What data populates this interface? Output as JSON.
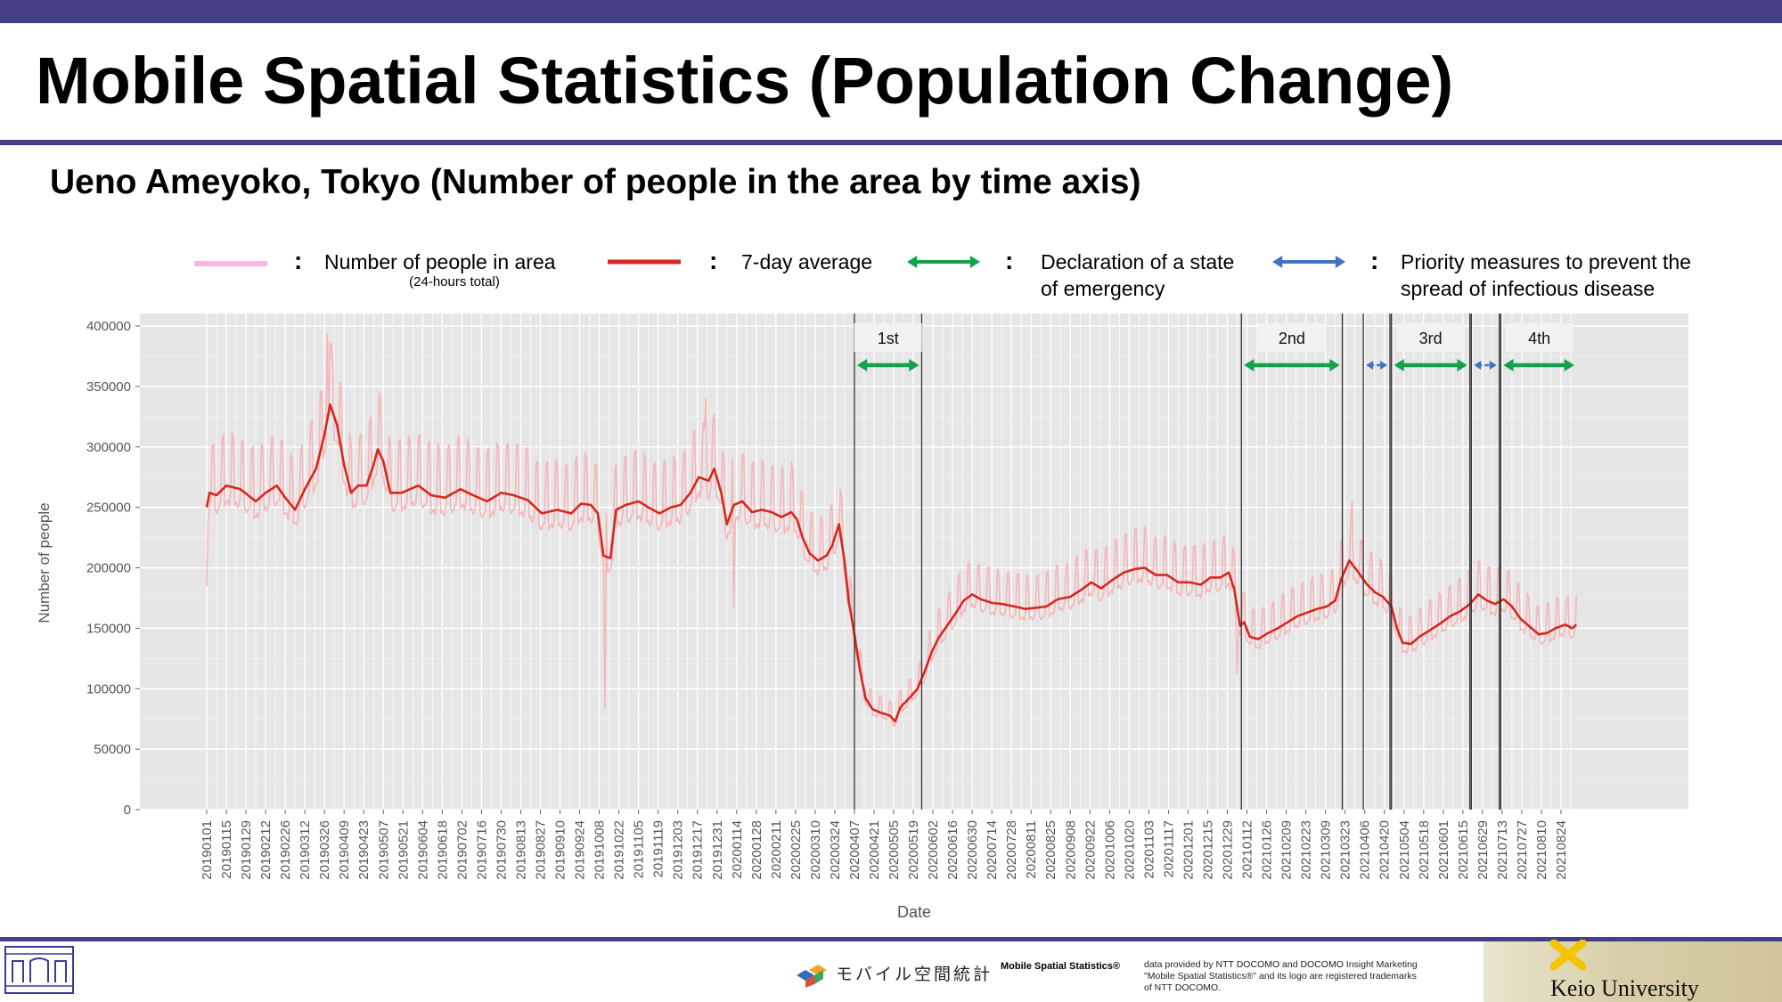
{
  "header": {
    "title": "Mobile Spatial Statistics (Population Change)",
    "subtitle": "Ueno Ameyoko, Tokyo (Number of people in the area by time axis)"
  },
  "legend": {
    "colon": ":",
    "items": [
      {
        "label": "Number of people in area",
        "sublabel": "(24-hours total)",
        "color": "#f7b6e6"
      },
      {
        "label": "7-day average",
        "color": "#d6281e"
      },
      {
        "label_lines": [
          "Declaration of a state",
          "of emergency"
        ],
        "color": "#12a24a"
      },
      {
        "label_lines": [
          "Priority measures to prevent the",
          "spread of infectious disease"
        ],
        "color": "#4472c4"
      }
    ]
  },
  "chart_data": {
    "type": "line",
    "xlabel": "Date",
    "ylabel": "Number of people",
    "ylim": [
      0,
      400000
    ],
    "yticks": [
      0,
      50000,
      100000,
      150000,
      200000,
      250000,
      300000,
      350000,
      400000
    ],
    "ytick_labels": [
      "0",
      "50000",
      "100000",
      "150000",
      "200000",
      "250000",
      "300000",
      "350000",
      "400000"
    ],
    "x_start": "2019-01-01",
    "x_end": "2021-09-05",
    "xtick_labels": [
      "20190101",
      "20190115",
      "20190129",
      "20190212",
      "20190226",
      "20190312",
      "20190326",
      "20190409",
      "20190423",
      "20190507",
      "20190521",
      "20190604",
      "20190618",
      "20190702",
      "20190716",
      "20190730",
      "20190813",
      "20190827",
      "20190910",
      "20190924",
      "20191008",
      "20191022",
      "20191105",
      "20191119",
      "20191203",
      "20191217",
      "20191231",
      "20200114",
      "20200128",
      "20200211",
      "20200225",
      "20200310",
      "20200324",
      "20200407",
      "20200421",
      "20200505",
      "20200519",
      "20200602",
      "20200616",
      "20200630",
      "20200714",
      "20200728",
      "20200811",
      "20200825",
      "20200908",
      "20200922",
      "20201006",
      "20201020",
      "20201103",
      "20201117",
      "20201201",
      "20201215",
      "20201229",
      "20210112",
      "20210126",
      "20210209",
      "20210223",
      "20210309",
      "20210323",
      "20210406",
      "20210420",
      "20210504",
      "20210518",
      "20210601",
      "20210615",
      "20210629",
      "20210713",
      "20210727",
      "20210810",
      "20210824"
    ],
    "grid": true,
    "background": "#e6e6e6",
    "series": [
      {
        "name": "7-day average",
        "color": "#d6281e",
        "points": [
          [
            "2019-01-01",
            250000
          ],
          [
            "2019-01-03",
            262000
          ],
          [
            "2019-01-08",
            260000
          ],
          [
            "2019-01-15",
            268000
          ],
          [
            "2019-01-25",
            265000
          ],
          [
            "2019-02-05",
            255000
          ],
          [
            "2019-02-12",
            262000
          ],
          [
            "2019-02-20",
            268000
          ],
          [
            "2019-02-26",
            258000
          ],
          [
            "2019-03-05",
            248000
          ],
          [
            "2019-03-12",
            265000
          ],
          [
            "2019-03-20",
            282000
          ],
          [
            "2019-03-26",
            310000
          ],
          [
            "2019-03-30",
            335000
          ],
          [
            "2019-04-04",
            318000
          ],
          [
            "2019-04-09",
            285000
          ],
          [
            "2019-04-14",
            262000
          ],
          [
            "2019-04-19",
            268000
          ],
          [
            "2019-04-25",
            268000
          ],
          [
            "2019-04-30",
            285000
          ],
          [
            "2019-05-03",
            298000
          ],
          [
            "2019-05-07",
            288000
          ],
          [
            "2019-05-12",
            262000
          ],
          [
            "2019-05-20",
            262000
          ],
          [
            "2019-06-01",
            268000
          ],
          [
            "2019-06-10",
            260000
          ],
          [
            "2019-06-20",
            258000
          ],
          [
            "2019-07-01",
            265000
          ],
          [
            "2019-07-10",
            260000
          ],
          [
            "2019-07-20",
            255000
          ],
          [
            "2019-07-30",
            262000
          ],
          [
            "2019-08-08",
            260000
          ],
          [
            "2019-08-18",
            256000
          ],
          [
            "2019-08-28",
            245000
          ],
          [
            "2019-09-08",
            248000
          ],
          [
            "2019-09-18",
            245000
          ],
          [
            "2019-09-25",
            253000
          ],
          [
            "2019-10-02",
            252000
          ],
          [
            "2019-10-07",
            245000
          ],
          [
            "2019-10-11",
            210000
          ],
          [
            "2019-10-16",
            208000
          ],
          [
            "2019-10-20",
            248000
          ],
          [
            "2019-10-27",
            252000
          ],
          [
            "2019-11-05",
            255000
          ],
          [
            "2019-11-12",
            250000
          ],
          [
            "2019-11-20",
            245000
          ],
          [
            "2019-11-28",
            250000
          ],
          [
            "2019-12-05",
            252000
          ],
          [
            "2019-12-12",
            262000
          ],
          [
            "2019-12-18",
            275000
          ],
          [
            "2019-12-25",
            272000
          ],
          [
            "2019-12-29",
            282000
          ],
          [
            "2020-01-03",
            262000
          ],
          [
            "2020-01-07",
            236000
          ],
          [
            "2020-01-12",
            252000
          ],
          [
            "2020-01-18",
            255000
          ],
          [
            "2020-01-25",
            246000
          ],
          [
            "2020-02-01",
            248000
          ],
          [
            "2020-02-08",
            246000
          ],
          [
            "2020-02-15",
            242000
          ],
          [
            "2020-02-22",
            246000
          ],
          [
            "2020-02-26",
            240000
          ],
          [
            "2020-03-01",
            225000
          ],
          [
            "2020-03-06",
            212000
          ],
          [
            "2020-03-12",
            206000
          ],
          [
            "2020-03-18",
            210000
          ],
          [
            "2020-03-22",
            218000
          ],
          [
            "2020-03-27",
            236000
          ],
          [
            "2020-03-31",
            205000
          ],
          [
            "2020-04-03",
            172000
          ],
          [
            "2020-04-07",
            145000
          ],
          [
            "2020-04-11",
            115000
          ],
          [
            "2020-04-15",
            92000
          ],
          [
            "2020-04-20",
            83000
          ],
          [
            "2020-04-26",
            80000
          ],
          [
            "2020-05-02",
            78000
          ],
          [
            "2020-05-06",
            73000
          ],
          [
            "2020-05-10",
            85000
          ],
          [
            "2020-05-16",
            92000
          ],
          [
            "2020-05-22",
            100000
          ],
          [
            "2020-05-27",
            114000
          ],
          [
            "2020-06-01",
            130000
          ],
          [
            "2020-06-06",
            142000
          ],
          [
            "2020-06-12",
            152000
          ],
          [
            "2020-06-18",
            162000
          ],
          [
            "2020-06-24",
            173000
          ],
          [
            "2020-06-30",
            178000
          ],
          [
            "2020-07-06",
            174000
          ],
          [
            "2020-07-14",
            171000
          ],
          [
            "2020-07-22",
            170000
          ],
          [
            "2020-07-30",
            168000
          ],
          [
            "2020-08-07",
            166000
          ],
          [
            "2020-08-15",
            167000
          ],
          [
            "2020-08-22",
            168000
          ],
          [
            "2020-08-30",
            174000
          ],
          [
            "2020-09-08",
            176000
          ],
          [
            "2020-09-16",
            182000
          ],
          [
            "2020-09-23",
            188000
          ],
          [
            "2020-09-30",
            183000
          ],
          [
            "2020-10-08",
            190000
          ],
          [
            "2020-10-16",
            196000
          ],
          [
            "2020-10-24",
            199000
          ],
          [
            "2020-10-31",
            200000
          ],
          [
            "2020-11-08",
            194000
          ],
          [
            "2020-11-16",
            194000
          ],
          [
            "2020-11-24",
            188000
          ],
          [
            "2020-12-02",
            188000
          ],
          [
            "2020-12-10",
            186000
          ],
          [
            "2020-12-17",
            192000
          ],
          [
            "2020-12-24",
            192000
          ],
          [
            "2020-12-30",
            196000
          ],
          [
            "2021-01-03",
            182000
          ],
          [
            "2021-01-07",
            152000
          ],
          [
            "2021-01-10",
            155000
          ],
          [
            "2021-01-14",
            143000
          ],
          [
            "2021-01-20",
            141000
          ],
          [
            "2021-01-27",
            146000
          ],
          [
            "2021-02-03",
            150000
          ],
          [
            "2021-02-10",
            155000
          ],
          [
            "2021-02-17",
            160000
          ],
          [
            "2021-02-24",
            163000
          ],
          [
            "2021-03-03",
            166000
          ],
          [
            "2021-03-10",
            168000
          ],
          [
            "2021-03-16",
            173000
          ],
          [
            "2021-03-20",
            190000
          ],
          [
            "2021-03-26",
            206000
          ],
          [
            "2021-04-01",
            197000
          ],
          [
            "2021-04-07",
            187000
          ],
          [
            "2021-04-13",
            180000
          ],
          [
            "2021-04-19",
            176000
          ],
          [
            "2021-04-25",
            168000
          ],
          [
            "2021-04-29",
            150000
          ],
          [
            "2021-05-03",
            138000
          ],
          [
            "2021-05-09",
            137000
          ],
          [
            "2021-05-15",
            143000
          ],
          [
            "2021-05-22",
            148000
          ],
          [
            "2021-05-30",
            154000
          ],
          [
            "2021-06-06",
            160000
          ],
          [
            "2021-06-13",
            164000
          ],
          [
            "2021-06-20",
            170000
          ],
          [
            "2021-06-26",
            178000
          ],
          [
            "2021-07-02",
            173000
          ],
          [
            "2021-07-08",
            170000
          ],
          [
            "2021-07-14",
            174000
          ],
          [
            "2021-07-20",
            168000
          ],
          [
            "2021-07-26",
            158000
          ],
          [
            "2021-08-01",
            152000
          ],
          [
            "2021-08-08",
            145000
          ],
          [
            "2021-08-14",
            146000
          ],
          [
            "2021-08-20",
            150000
          ],
          [
            "2021-08-27",
            153000
          ],
          [
            "2021-09-01",
            150000
          ],
          [
            "2021-09-04",
            153000
          ]
        ]
      },
      {
        "name": "Number of people in area",
        "sublabel": "(24-hours total)",
        "color": "#f8b3b6",
        "note": "daily values oscillate weekly around the 7-day average",
        "spikes": [
          [
            "2019-01-01",
            185000
          ],
          [
            "2019-03-28",
            393000
          ],
          [
            "2019-04-01",
            365000
          ],
          [
            "2019-10-12",
            84000
          ],
          [
            "2019-12-23",
            340000
          ],
          [
            "2020-01-12",
            168000
          ],
          [
            "2021-01-05",
            113000
          ],
          [
            "2021-03-28",
            255000
          ]
        ]
      }
    ],
    "periods": [
      {
        "label": "1st",
        "type": "emergency",
        "start": "2020-04-07",
        "end": "2020-05-25"
      },
      {
        "label": "2nd",
        "type": "emergency",
        "start": "2021-01-08",
        "end": "2021-03-21"
      },
      {
        "label": "",
        "type": "priority",
        "start": "2021-04-05",
        "end": "2021-04-24"
      },
      {
        "label": "3rd",
        "type": "emergency",
        "start": "2021-04-25",
        "end": "2021-06-20"
      },
      {
        "label": "",
        "type": "priority",
        "start": "2021-06-21",
        "end": "2021-07-11"
      },
      {
        "label": "4th",
        "type": "emergency",
        "start": "2021-07-12",
        "end": "2021-09-05",
        "open_end": true
      }
    ]
  },
  "footer": {
    "mss_logo_text": "モバイル空間統計",
    "mss_name": "Mobile Spatial Statistics®",
    "mss_notes": [
      "data provided by NTT DOCOMO and DOCOMO Insight Marketing",
      "\"Mobile Spatial Statistics®\" and its logo are registered trademarks",
      "of NTT DOCOMO."
    ],
    "university": "Keio University",
    "keio_mark_color": "#f5c400"
  }
}
